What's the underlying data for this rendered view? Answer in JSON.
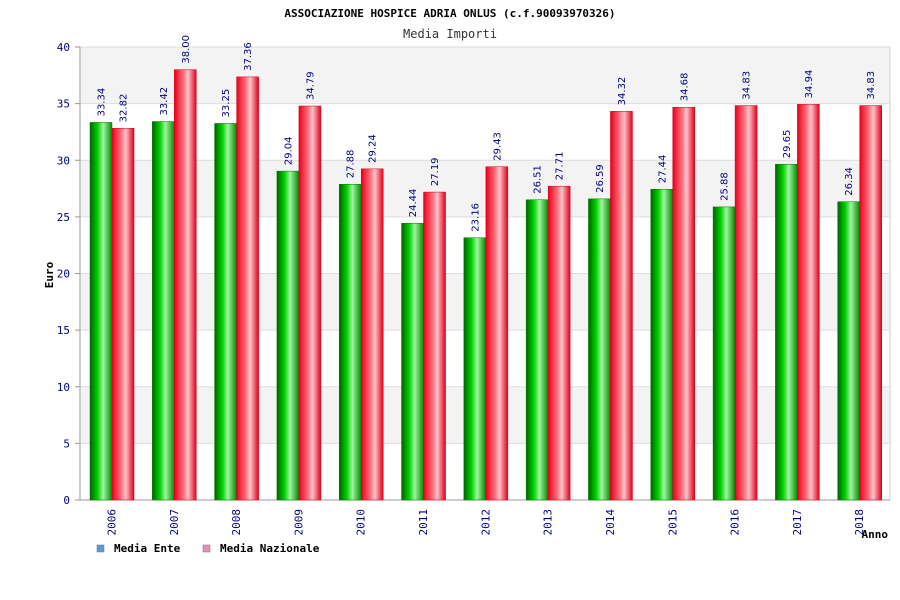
{
  "chart_data": {
    "type": "bar",
    "title": "ASSOCIAZIONE HOSPICE ADRIA ONLUS (c.f.90093970326)",
    "subtitle": "Media Importi",
    "xlabel": "Anno",
    "ylabel": "Euro",
    "ylim": [
      0,
      40
    ],
    "yticks": [
      0,
      5,
      10,
      15,
      20,
      25,
      30,
      35,
      40
    ],
    "grid": true,
    "legend_position": "bottom-left",
    "categories": [
      "2006",
      "2007",
      "2008",
      "2009",
      "2010",
      "2011",
      "2012",
      "2013",
      "2014",
      "2015",
      "2016",
      "2017",
      "2018"
    ],
    "series": [
      {
        "name": "Media Ente",
        "color": "#00c000",
        "legend_color": "#5b9bd5",
        "values": [
          33.34,
          33.42,
          33.25,
          29.04,
          27.88,
          24.44,
          23.16,
          26.51,
          26.59,
          27.44,
          25.88,
          29.65,
          26.34
        ]
      },
      {
        "name": "Media Nazionale",
        "color": "#ff1020",
        "legend_color": "#e58fb8",
        "values": [
          32.82,
          38.0,
          37.36,
          34.79,
          29.24,
          27.19,
          29.43,
          27.71,
          34.32,
          34.68,
          34.83,
          34.94,
          34.83
        ]
      }
    ],
    "value_labels": [
      [
        "33.34",
        "33.42",
        "33.25",
        "29.04",
        "27.88",
        "24.44",
        "23.16",
        "26.51",
        "26.59",
        "27.44",
        "25.88",
        "29.65",
        "26.34"
      ],
      [
        "32.82",
        "38.00",
        "37.36",
        "34.79",
        "29.24",
        "27.19",
        "29.43",
        "27.71",
        "34.32",
        "34.68",
        "34.83",
        "34.94",
        "34.83"
      ]
    ]
  }
}
